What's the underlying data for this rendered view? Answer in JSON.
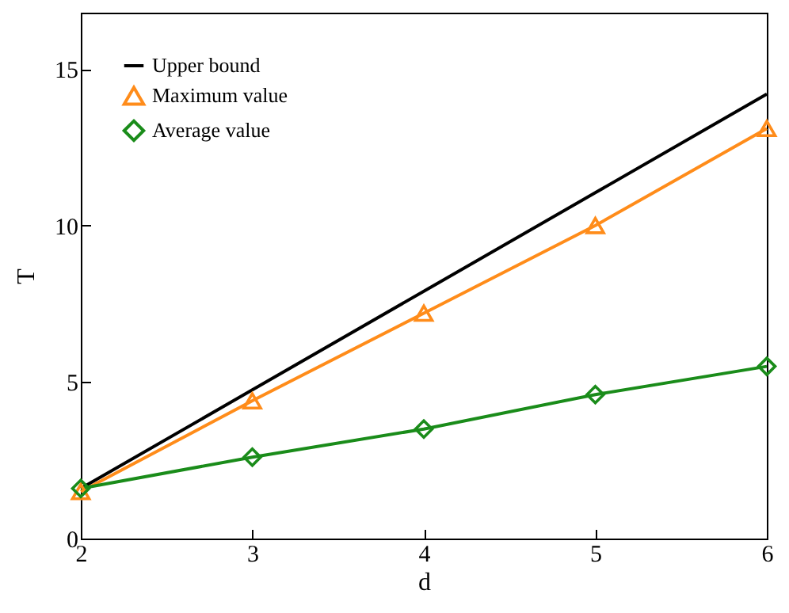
{
  "chart_data": {
    "type": "line",
    "xlabel": "d",
    "ylabel": "T",
    "xlim": [
      2,
      6
    ],
    "ylim": [
      0,
      16.8
    ],
    "xticks": [
      2,
      3,
      4,
      5,
      6
    ],
    "yticks": [
      0,
      5,
      10,
      15
    ],
    "grid": false,
    "legend": "top left",
    "series": [
      {
        "name": "Upper bound",
        "color": "#000000",
        "marker": "none",
        "x": [
          2,
          3,
          4,
          5,
          6
        ],
        "values": [
          1.6,
          4.75,
          7.9,
          11.05,
          14.2
        ]
      },
      {
        "name": "Maximum value",
        "color": "#ff8c1a",
        "marker": "triangle",
        "x": [
          2,
          3,
          4,
          5,
          6
        ],
        "values": [
          1.5,
          4.4,
          7.2,
          10.0,
          13.1
        ]
      },
      {
        "name": "Average value",
        "color": "#1a8c1a",
        "marker": "diamond",
        "x": [
          2,
          3,
          4,
          5,
          6
        ],
        "values": [
          1.6,
          2.6,
          3.5,
          4.6,
          5.5
        ]
      }
    ]
  }
}
